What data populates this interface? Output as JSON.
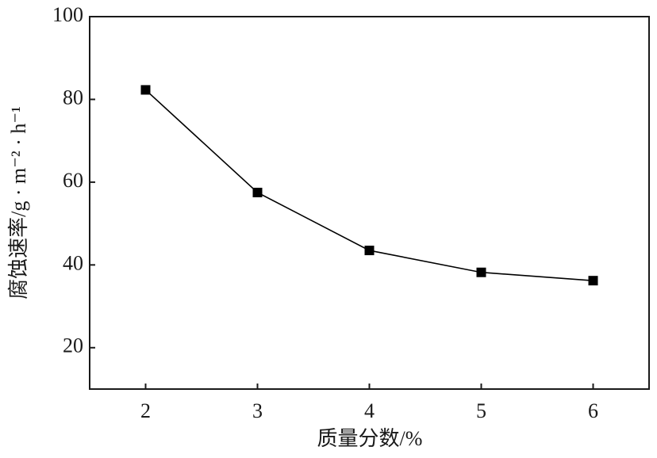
{
  "chart_data": {
    "type": "line",
    "x_label": "质量分数/%",
    "y_label": "腐蚀速率/g · m⁻² · h⁻¹",
    "x": [
      2,
      3,
      4,
      5,
      6
    ],
    "series": [
      {
        "color": "#000000",
        "values": [
          82.3,
          57.5,
          43.5,
          38.2,
          36.2
        ]
      }
    ],
    "xlim": [
      1.5,
      6.5
    ],
    "xticks": [
      2,
      3,
      4,
      5,
      6
    ],
    "ylim": [
      10,
      100
    ],
    "yticks": [
      20,
      40,
      60,
      80,
      100
    ],
    "grid": false
  }
}
